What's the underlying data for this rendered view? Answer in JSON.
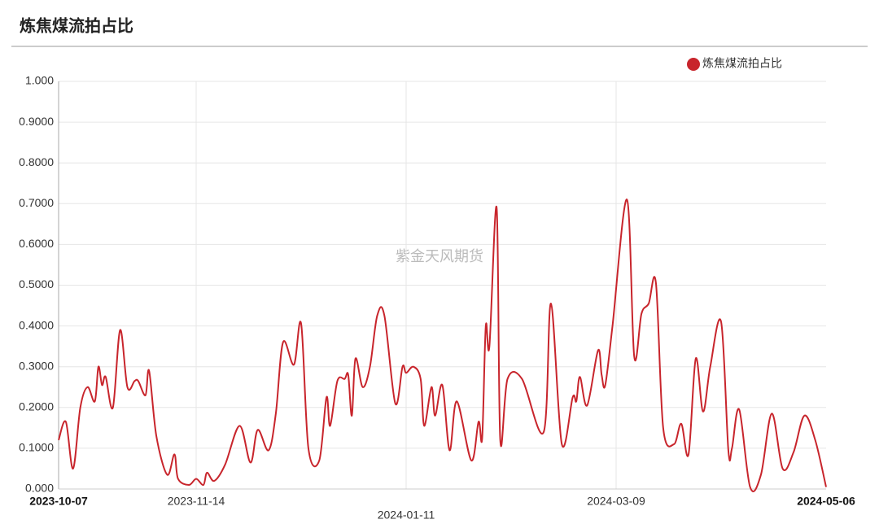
{
  "chart_data": {
    "type": "line",
    "title": "炼焦煤流拍占比",
    "watermark": "紫金天风期货",
    "x": [
      "2023-10-07",
      "2023-10-09",
      "2023-10-11",
      "2023-10-13",
      "2023-10-15",
      "2023-10-17",
      "2023-10-18",
      "2023-10-19",
      "2023-10-20",
      "2023-10-22",
      "2023-10-24",
      "2023-10-26",
      "2023-10-28",
      "2023-10-29",
      "2023-10-31",
      "2023-11-01",
      "2023-11-03",
      "2023-11-06",
      "2023-11-08",
      "2023-11-09",
      "2023-11-12",
      "2023-11-14",
      "2023-11-16",
      "2023-11-17",
      "2023-11-19",
      "2023-11-22",
      "2023-11-26",
      "2023-11-29",
      "2023-12-01",
      "2023-12-04",
      "2023-12-06",
      "2023-12-08",
      "2023-12-11",
      "2023-12-13",
      "2023-12-15",
      "2023-12-18",
      "2023-12-20",
      "2023-12-21",
      "2023-12-23",
      "2023-12-25",
      "2023-12-26",
      "2023-12-27",
      "2023-12-28",
      "2023-12-30",
      "2024-01-01",
      "2024-01-03",
      "2024-01-05",
      "2024-01-08",
      "2024-01-10",
      "2024-01-11",
      "2024-01-13",
      "2024-01-15",
      "2024-01-16",
      "2024-01-18",
      "2024-01-19",
      "2024-01-21",
      "2024-01-23",
      "2024-01-25",
      "2024-01-29",
      "2024-01-31",
      "2024-02-01",
      "2024-02-02",
      "2024-02-03",
      "2024-02-05",
      "2024-02-06",
      "2024-02-08",
      "2024-02-12",
      "2024-02-18",
      "2024-02-20",
      "2024-02-23",
      "2024-02-26",
      "2024-02-27",
      "2024-02-28",
      "2024-03-01",
      "2024-03-04",
      "2024-03-05",
      "2024-03-06",
      "2024-03-08",
      "2024-03-12",
      "2024-03-14",
      "2024-03-16",
      "2024-03-18",
      "2024-03-20",
      "2024-03-22",
      "2024-03-25",
      "2024-03-27",
      "2024-03-29",
      "2024-03-31",
      "2024-04-02",
      "2024-04-04",
      "2024-04-07",
      "2024-04-09",
      "2024-04-10",
      "2024-04-12",
      "2024-04-15",
      "2024-04-18",
      "2024-04-21",
      "2024-04-24",
      "2024-04-27",
      "2024-04-30",
      "2024-05-03",
      "2024-05-06"
    ],
    "series": [
      {
        "name": "炼焦煤流拍占比",
        "color": "#c8252c",
        "values": [
          0.12,
          0.165,
          0.05,
          0.2,
          0.25,
          0.215,
          0.3,
          0.255,
          0.275,
          0.2,
          0.39,
          0.25,
          0.265,
          0.265,
          0.23,
          0.29,
          0.13,
          0.035,
          0.085,
          0.025,
          0.01,
          0.025,
          0.01,
          0.04,
          0.02,
          0.06,
          0.155,
          0.065,
          0.145,
          0.095,
          0.185,
          0.36,
          0.305,
          0.405,
          0.1,
          0.07,
          0.225,
          0.155,
          0.265,
          0.27,
          0.28,
          0.18,
          0.32,
          0.25,
          0.3,
          0.425,
          0.425,
          0.21,
          0.3,
          0.285,
          0.3,
          0.27,
          0.155,
          0.25,
          0.18,
          0.255,
          0.095,
          0.215,
          0.07,
          0.165,
          0.125,
          0.4,
          0.35,
          0.69,
          0.12,
          0.27,
          0.27,
          0.14,
          0.455,
          0.11,
          0.225,
          0.215,
          0.275,
          0.205,
          0.34,
          0.28,
          0.255,
          0.4,
          0.71,
          0.325,
          0.43,
          0.455,
          0.505,
          0.15,
          0.11,
          0.16,
          0.085,
          0.32,
          0.19,
          0.3,
          0.41,
          0.095,
          0.1,
          0.195,
          0.005,
          0.035,
          0.185,
          0.05,
          0.09,
          0.18,
          0.12,
          0.005
        ]
      }
    ],
    "xlim": [
      "2023-10-07",
      "2024-05-06"
    ],
    "xticks": [
      "2023-10-07",
      "2023-11-14",
      "2024-01-11",
      "2024-03-09",
      "2024-05-06"
    ],
    "ylim": [
      0,
      1
    ],
    "yticks": [
      {
        "value": 0,
        "label": "0.000"
      },
      {
        "value": 0.1,
        "label": "0.1000"
      },
      {
        "value": 0.2,
        "label": "0.2000"
      },
      {
        "value": 0.3,
        "label": "0.3000"
      },
      {
        "value": 0.4,
        "label": "0.4000"
      },
      {
        "value": 0.5,
        "label": "0.5000"
      },
      {
        "value": 0.6,
        "label": "0.6000"
      },
      {
        "value": 0.7,
        "label": "0.7000"
      },
      {
        "value": 0.8,
        "label": "0.8000"
      },
      {
        "value": 0.9,
        "label": "0.9000"
      },
      {
        "value": 1,
        "label": "1.000"
      }
    ],
    "grid": true,
    "legend": "top-right"
  }
}
